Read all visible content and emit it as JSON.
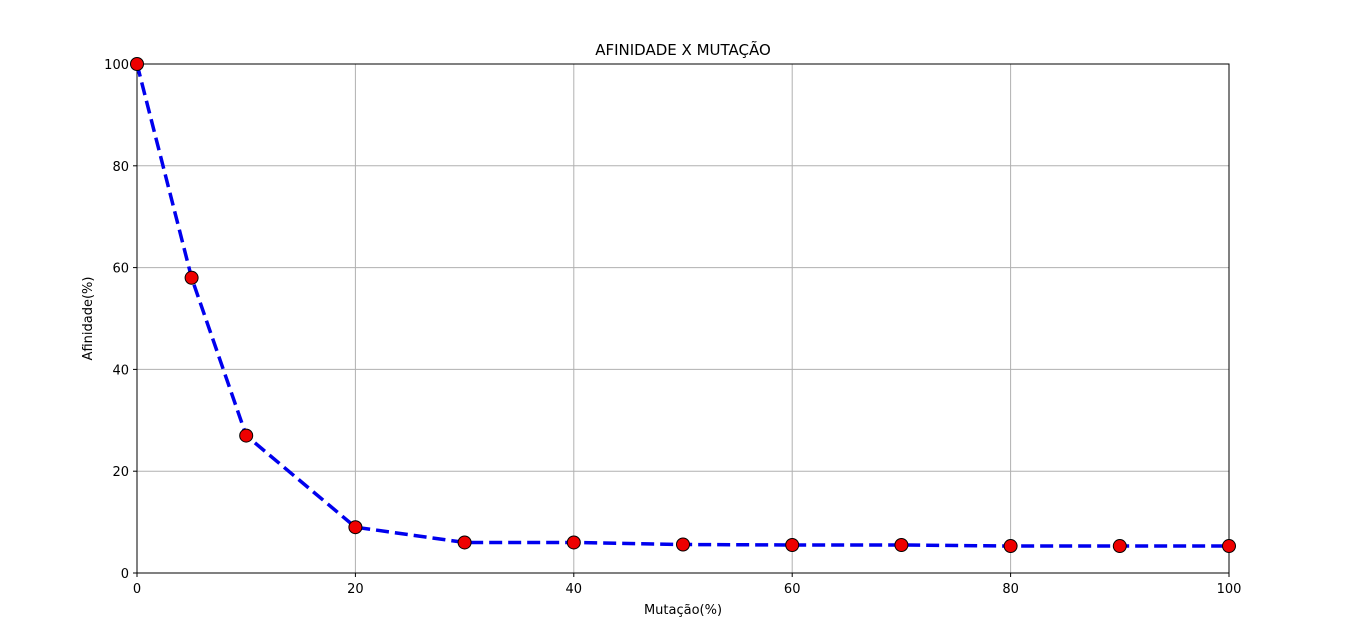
{
  "chart_data": {
    "type": "line",
    "title": "AFINIDADE X MUTAÇÃO",
    "xlabel": "Mutação(%)",
    "ylabel": "Afinidade(%)",
    "xlim": [
      0,
      100
    ],
    "ylim": [
      0,
      100
    ],
    "xticks": [
      0,
      20,
      40,
      60,
      80,
      100
    ],
    "yticks": [
      0,
      20,
      40,
      60,
      80,
      100
    ],
    "grid": true,
    "series": [
      {
        "x": [
          0,
          5,
          10,
          20,
          30,
          40,
          50,
          60,
          70,
          80,
          90,
          100
        ],
        "y": [
          100,
          58,
          27,
          9,
          6,
          6,
          5.6,
          5.5,
          5.5,
          5.3,
          5.3,
          5.3
        ],
        "line_style": "dashed",
        "line_color": "#0000ee",
        "marker": "circle",
        "marker_color": "#ee0000",
        "marker_edge_color": "#000000"
      }
    ]
  }
}
